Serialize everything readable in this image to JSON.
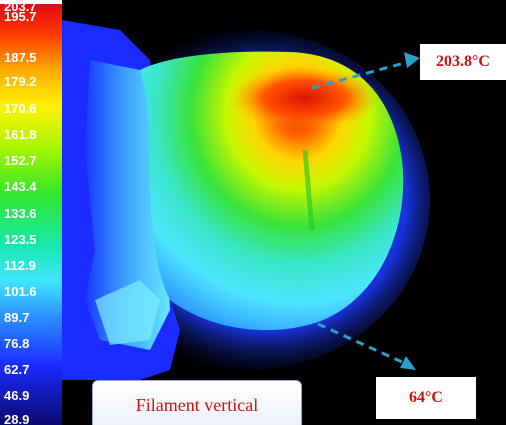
{
  "scale": {
    "ticks": [
      "203.7",
      "195.7",
      "187.5",
      "179.2",
      "170.6",
      "161.8",
      "152.7",
      "143.4",
      "133.6",
      "123.5",
      "112.9",
      "101.6",
      "89.7",
      "76.8",
      "62.7",
      "46.9",
      "28.9"
    ]
  },
  "annotations": {
    "max_temp": "203.8°C",
    "min_temp": "64°C"
  },
  "caption": "Filament vertical",
  "colors": {
    "hot": "#ff2a00",
    "warm": "#ffe600",
    "mid": "#34e034",
    "cool": "#4fe6ff",
    "arrow": "#2a9fc9",
    "label_text": "#d01010"
  }
}
